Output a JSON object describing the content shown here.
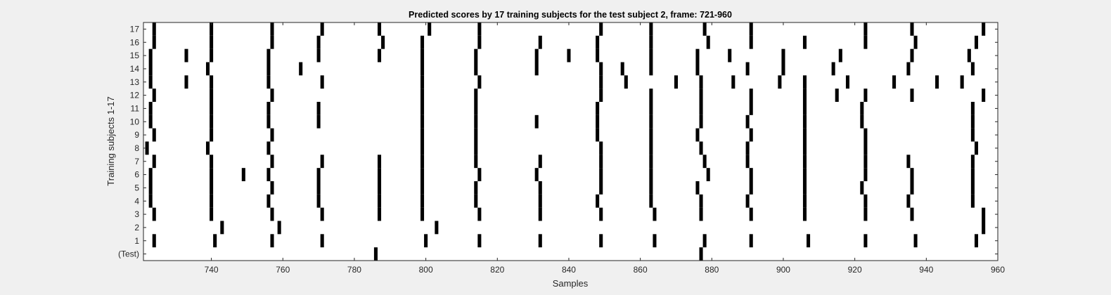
{
  "chart_data": {
    "type": "heatmap",
    "title": "Predicted scores by 17 training subjects for the test subject 2, frame: 721-960",
    "xlabel": "Samples",
    "ylabel": "Training subjects 1-17",
    "xlim": [
      721,
      960
    ],
    "x_ticks": [
      740,
      760,
      780,
      800,
      820,
      840,
      860,
      880,
      900,
      920,
      940,
      960
    ],
    "y_tick_labels": [
      "(Test)",
      "1",
      "2",
      "3",
      "4",
      "5",
      "6",
      "7",
      "8",
      "9",
      "10",
      "11",
      "12",
      "13",
      "14",
      "15",
      "16",
      "17"
    ],
    "mark_color": "#000000",
    "background_color": "#ffffff",
    "rows": [
      {
        "label": "(Test)",
        "x": [
          786,
          877
        ]
      },
      {
        "label": "1",
        "x": [
          724,
          741,
          757,
          771,
          800,
          815,
          832,
          849,
          864,
          878,
          891,
          907,
          923,
          937,
          954
        ]
      },
      {
        "label": "2",
        "x": [
          743,
          759,
          803,
          956
        ]
      },
      {
        "label": "3",
        "x": [
          724,
          740,
          757,
          771,
          787,
          799,
          815,
          832,
          849,
          864,
          877,
          891,
          906,
          923,
          936,
          956
        ]
      },
      {
        "label": "4",
        "x": [
          723,
          740,
          756,
          770,
          787,
          799,
          814,
          832,
          848,
          863,
          877,
          890,
          906,
          923,
          935,
          953
        ]
      },
      {
        "label": "5",
        "x": [
          723,
          740,
          757,
          770,
          787,
          799,
          814,
          832,
          849,
          863,
          876,
          891,
          906,
          922,
          936,
          953
        ]
      },
      {
        "label": "6",
        "x": [
          723,
          740,
          749,
          756,
          770,
          787,
          799,
          815,
          831,
          849,
          863,
          879,
          891,
          906,
          923,
          936,
          953
        ]
      },
      {
        "label": "7",
        "x": [
          724,
          740,
          757,
          771,
          787,
          799,
          814,
          832,
          849,
          863,
          878,
          890,
          906,
          923,
          935,
          953
        ]
      },
      {
        "label": "8",
        "x": [
          722,
          739,
          756,
          799,
          814,
          849,
          863,
          877,
          890,
          906,
          923,
          954
        ]
      },
      {
        "label": "9",
        "x": [
          724,
          740,
          757,
          799,
          814,
          848,
          863,
          876,
          891,
          906,
          923,
          953
        ]
      },
      {
        "label": "10",
        "x": [
          723,
          740,
          756,
          770,
          799,
          814,
          831,
          848,
          863,
          877,
          890,
          906,
          922,
          953
        ]
      },
      {
        "label": "11",
        "x": [
          723,
          740,
          756,
          770,
          799,
          814,
          848,
          863,
          877,
          891,
          906,
          922,
          953
        ]
      },
      {
        "label": "12",
        "x": [
          724,
          740,
          757,
          799,
          814,
          849,
          863,
          877,
          891,
          906,
          915,
          923,
          936,
          956
        ]
      },
      {
        "label": "13",
        "x": [
          723,
          733,
          740,
          756,
          771,
          799,
          815,
          849,
          856,
          870,
          877,
          886,
          899,
          906,
          918,
          931,
          943,
          950
        ]
      },
      {
        "label": "14",
        "x": [
          723,
          739,
          756,
          765,
          799,
          814,
          831,
          849,
          855,
          863,
          876,
          890,
          900,
          914,
          935,
          953
        ]
      },
      {
        "label": "15",
        "x": [
          723,
          733,
          740,
          756,
          770,
          787,
          799,
          814,
          831,
          840,
          848,
          863,
          876,
          885,
          900,
          916,
          936,
          952
        ]
      },
      {
        "label": "16",
        "x": [
          724,
          740,
          757,
          770,
          788,
          799,
          815,
          832,
          848,
          863,
          879,
          891,
          906,
          923,
          937,
          954
        ]
      },
      {
        "label": "17",
        "x": [
          724,
          740,
          757,
          771,
          787,
          801,
          815,
          849,
          863,
          878,
          891,
          923,
          936,
          956
        ]
      }
    ]
  }
}
